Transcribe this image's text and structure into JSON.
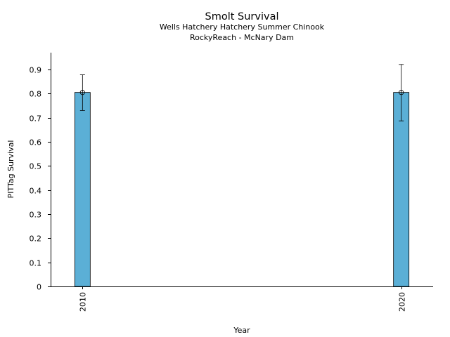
{
  "chart_data": {
    "type": "bar",
    "title": "Smolt Survival",
    "subtitle_lines": [
      "Wells Hatchery Hatchery Summer Chinook",
      "RockyReach - McNary Dam"
    ],
    "xlabel": "Year",
    "ylabel": "PITTag Survival",
    "x_ticks": [
      "2010",
      "2020"
    ],
    "y_ticks": [
      "0",
      "0.1",
      "0.2",
      "0.3",
      "0.4",
      "0.5",
      "0.6",
      "0.7",
      "0.8",
      "0.9"
    ],
    "ylim": [
      0,
      0.97
    ],
    "xlim": [
      2009.0,
      2021.0
    ],
    "grid": false,
    "bar_color": "#5bafd6",
    "categories": [
      "2010",
      "2020"
    ],
    "x": [
      2010,
      2020
    ],
    "values": [
      0.805,
      0.805
    ],
    "error_low": [
      0.73,
      0.687
    ],
    "error_high": [
      0.878,
      0.921
    ]
  }
}
